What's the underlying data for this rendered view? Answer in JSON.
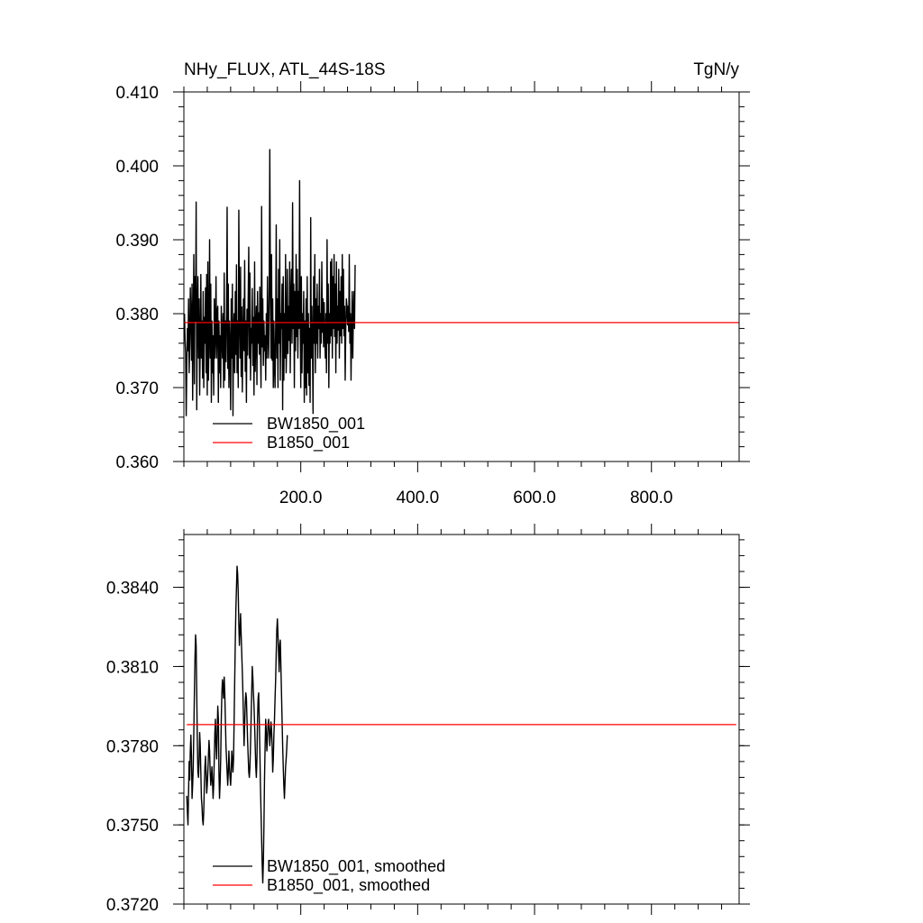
{
  "chart_data": [
    {
      "type": "line",
      "title_left": "NHy_FLUX, ATL_44S-18S",
      "title_right": "TgN/y",
      "xlabel": "",
      "ylabel": "",
      "xlim": [
        0,
        950
      ],
      "ylim": [
        0.36,
        0.41
      ],
      "x_ticks": [
        200,
        400,
        600,
        800
      ],
      "x_tick_labels": [
        "200.0",
        "400.0",
        "600.0",
        "800.0"
      ],
      "y_ticks": [
        0.36,
        0.37,
        0.38,
        0.39,
        0.4,
        0.41
      ],
      "y_tick_labels": [
        "0.360",
        "0.370",
        "0.380",
        "0.390",
        "0.400",
        "0.410"
      ],
      "legend_position": "bottom-left",
      "series": [
        {
          "name": "BW1850_001",
          "color": "#000000",
          "x_start": 1,
          "x_step": 1,
          "values": [
            0.38,
            0.3765,
            0.3745,
            0.3662,
            0.373,
            0.378,
            0.375,
            0.382,
            0.372,
            0.376,
            0.3835,
            0.3795,
            0.3737,
            0.384,
            0.3683,
            0.378,
            0.388,
            0.3705,
            0.385,
            0.379,
            0.3951,
            0.367,
            0.38,
            0.385,
            0.374,
            0.382,
            0.369,
            0.376,
            0.3853,
            0.374,
            0.379,
            0.3713,
            0.383,
            0.37,
            0.3795,
            0.376,
            0.3835,
            0.372,
            0.3853,
            0.369,
            0.387,
            0.371,
            0.377,
            0.39,
            0.374,
            0.384,
            0.368,
            0.379,
            0.372,
            0.377,
            0.369,
            0.382,
            0.374,
            0.377,
            0.385,
            0.374,
            0.38,
            0.381,
            0.368,
            0.379,
            0.372,
            0.377,
            0.37,
            0.381,
            0.3768,
            0.374,
            0.38,
            0.37,
            0.3855,
            0.371,
            0.379,
            0.3735,
            0.38,
            0.3944,
            0.3726,
            0.384,
            0.37,
            0.379,
            0.375,
            0.367,
            0.382,
            0.374,
            0.384,
            0.3662,
            0.378,
            0.38,
            0.372,
            0.383,
            0.3745,
            0.3866,
            0.372,
            0.379,
            0.37,
            0.394,
            0.38,
            0.374,
            0.3863,
            0.3715,
            0.3809,
            0.3694,
            0.377,
            0.382,
            0.375,
            0.3872,
            0.3722,
            0.379,
            0.368,
            0.3806,
            0.3744,
            0.382,
            0.389,
            0.374,
            0.3855,
            0.371,
            0.378,
            0.376,
            0.3834,
            0.373,
            0.3795,
            0.369,
            0.387,
            0.3722,
            0.377,
            0.381,
            0.3704,
            0.383,
            0.376,
            0.3801,
            0.3745,
            0.3836,
            0.376,
            0.37,
            0.3945,
            0.3755,
            0.382,
            0.373,
            0.379,
            0.375,
            0.377,
            0.371,
            0.38,
            0.374,
            0.385,
            0.377,
            0.374,
            0.383,
            0.4022,
            0.384,
            0.374,
            0.388,
            0.3737,
            0.382,
            0.37,
            0.379,
            0.373,
            0.37,
            0.378,
            0.392,
            0.374,
            0.382,
            0.37,
            0.386,
            0.376,
            0.39,
            0.371,
            0.38,
            0.378,
            0.384,
            0.367,
            0.385,
            0.371,
            0.38,
            0.374,
            0.388,
            0.372,
            0.376,
            0.386,
            0.3746,
            0.381,
            0.3764,
            0.387,
            0.372,
            0.382,
            0.386,
            0.376,
            0.395,
            0.378,
            0.384,
            0.37,
            0.383,
            0.375,
            0.388,
            0.3769,
            0.386,
            0.374,
            0.383,
            0.378,
            0.398,
            0.38,
            0.37,
            0.385,
            0.372,
            0.38,
            0.376,
            0.383,
            0.368,
            0.379,
            0.37,
            0.382,
            0.369,
            0.385,
            0.372,
            0.38,
            0.3703,
            0.378,
            0.368,
            0.393,
            0.374,
            0.381,
            0.376,
            0.3665,
            0.385,
            0.376,
            0.388,
            0.372,
            0.382,
            0.376,
            0.384,
            0.374,
            0.381,
            0.378,
            0.386,
            0.374,
            0.38,
            0.376,
            0.387,
            0.3775,
            0.382,
            0.3755,
            0.3815,
            0.377,
            0.374,
            0.38,
            0.372,
            0.39,
            0.376,
            0.384,
            0.37,
            0.38,
            0.376,
            0.387,
            0.377,
            0.3874,
            0.374,
            0.385,
            0.378,
            0.388,
            0.3769,
            0.384,
            0.372,
            0.387,
            0.376,
            0.381,
            0.3778,
            0.386,
            0.374,
            0.383,
            0.377,
            0.385,
            0.376,
            0.388,
            0.378,
            0.386,
            0.377,
            0.381,
            0.371,
            0.378,
            0.382,
            0.381,
            0.3785,
            0.381,
            0.3776,
            0.388,
            0.376,
            0.38,
            0.371,
            0.378,
            0.383,
            0.374,
            0.38,
            0.383,
            0.378,
            0.3866
          ]
        },
        {
          "name": "B1850_001",
          "color": "#ff0000",
          "x": [
            1,
            950
          ],
          "values": [
            0.3788,
            0.3788
          ]
        }
      ]
    },
    {
      "type": "line",
      "xlabel": "",
      "ylabel": "",
      "xlim": [
        0,
        950
      ],
      "ylim": [
        0.372,
        0.386
      ],
      "y_ticks": [
        0.372,
        0.375,
        0.378,
        0.381,
        0.384
      ],
      "y_tick_labels": [
        "0.3720",
        "0.3750",
        "0.3780",
        "0.3810",
        "0.3840"
      ],
      "legend_position": "bottom-left",
      "series": [
        {
          "name": "BW1850_001, smoothed",
          "color": "#000000",
          "x_start": 5,
          "x_step": 1,
          "values": [
            0.3761,
            0.3755,
            0.375,
            0.3762,
            0.3774,
            0.3767,
            0.3778,
            0.3784,
            0.3776,
            0.376,
            0.3765,
            0.3772,
            0.3785,
            0.38,
            0.3813,
            0.3822,
            0.3818,
            0.38,
            0.3782,
            0.377,
            0.3768,
            0.3774,
            0.3785,
            0.378,
            0.377,
            0.376,
            0.3757,
            0.3752,
            0.375,
            0.3755,
            0.3765,
            0.3772,
            0.3776,
            0.377,
            0.3762,
            0.3765,
            0.377,
            0.3776,
            0.3782,
            0.3778,
            0.377,
            0.3765,
            0.3768,
            0.3772,
            0.3766,
            0.376,
            0.3765,
            0.3775,
            0.3785,
            0.379,
            0.378,
            0.3775,
            0.3785,
            0.3795,
            0.379,
            0.377,
            0.376,
            0.3766,
            0.3775,
            0.379,
            0.38,
            0.3805,
            0.3802,
            0.3798,
            0.3806,
            0.38,
            0.379,
            0.378,
            0.3775,
            0.377,
            0.3765,
            0.377,
            0.3778,
            0.3772,
            0.3768,
            0.3765,
            0.377,
            0.3778,
            0.3775,
            0.377,
            0.3775,
            0.379,
            0.3805,
            0.382,
            0.3832,
            0.384,
            0.3848,
            0.3845,
            0.3838,
            0.3826,
            0.3818,
            0.3824,
            0.383,
            0.3822,
            0.3815,
            0.3808,
            0.38,
            0.379,
            0.378,
            0.3788,
            0.3796,
            0.38,
            0.3798,
            0.379,
            0.3782,
            0.3776,
            0.377,
            0.3768,
            0.3772,
            0.378,
            0.379,
            0.38,
            0.381,
            0.3806,
            0.38,
            0.3795,
            0.3788,
            0.378,
            0.3772,
            0.3768,
            0.3775,
            0.379,
            0.3798,
            0.38,
            0.379,
            0.3778,
            0.3765,
            0.3755,
            0.3745,
            0.3735,
            0.3728,
            0.3736,
            0.375,
            0.3768,
            0.378,
            0.379,
            0.3785,
            0.3778,
            0.3783,
            0.3788,
            0.379,
            0.3786,
            0.378,
            0.3784,
            0.3789,
            0.3786,
            0.378,
            0.377,
            0.3775,
            0.3784,
            0.379,
            0.3798,
            0.3805,
            0.3815,
            0.3824,
            0.3828,
            0.3822,
            0.3815,
            0.3808,
            0.3818,
            0.382,
            0.381,
            0.38,
            0.379,
            0.378,
            0.3772,
            0.3765,
            0.376,
            0.3766,
            0.3772,
            0.3775,
            0.3779,
            0.3784
          ]
        },
        {
          "name": "B1850_001, smoothed",
          "color": "#ff0000",
          "x": [
            5,
            945
          ],
          "values": [
            0.3788,
            0.3788
          ]
        }
      ]
    }
  ]
}
